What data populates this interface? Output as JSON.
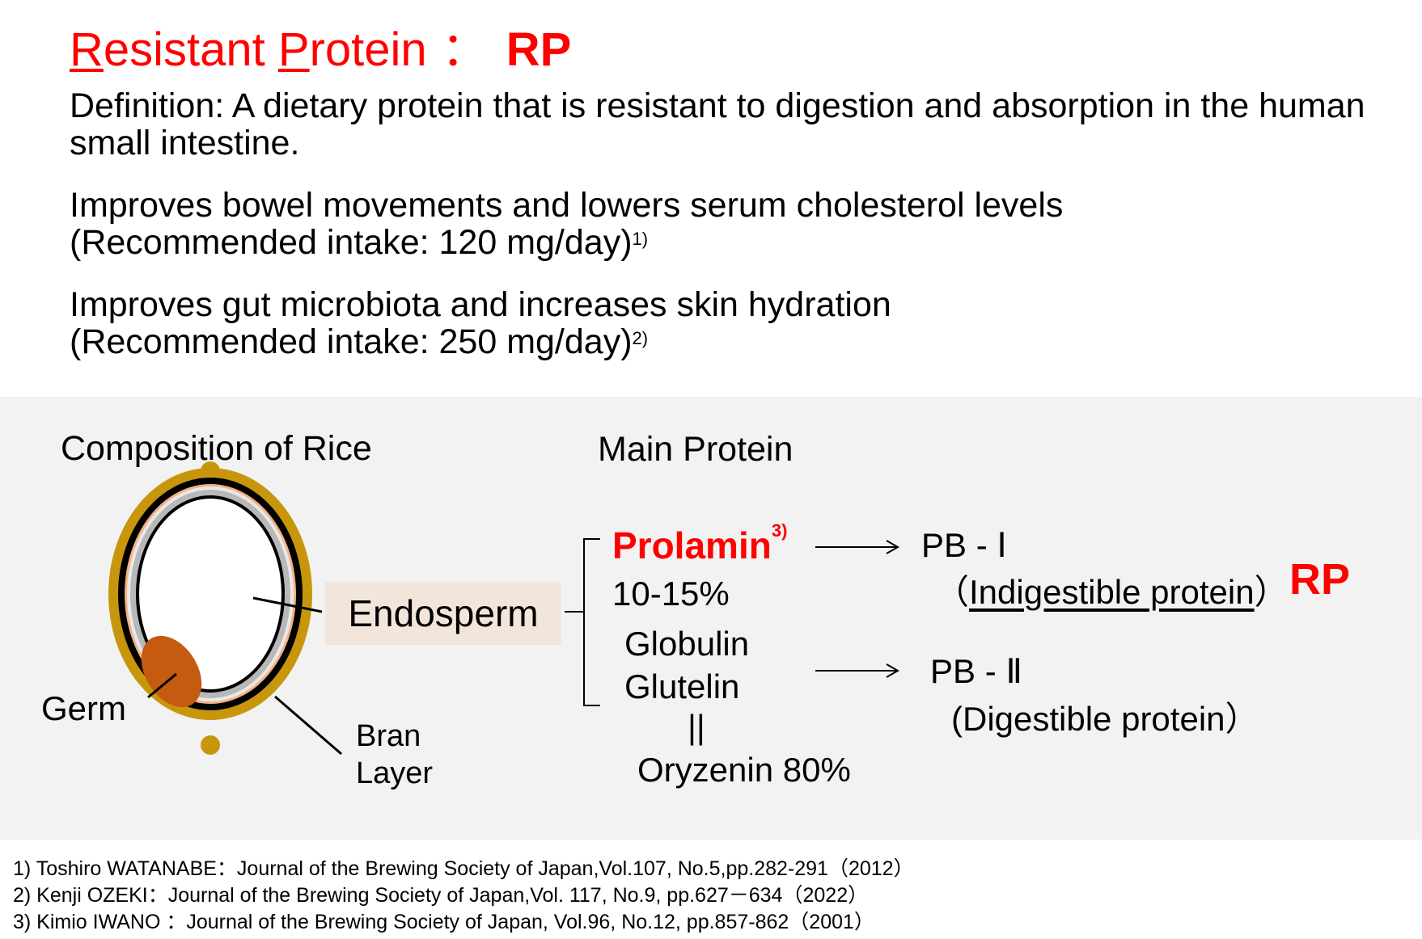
{
  "title": {
    "r_initial": "R",
    "word1_rest": "esistant ",
    "p_initial": "P",
    "word2_rest": "rotein",
    "separator": "：",
    "abbr": "RP"
  },
  "definition": {
    "line1": "Definition: A dietary protein that is resistant to digestion and absorption in the human",
    "line2": "small intestine."
  },
  "effect1": {
    "line1": "Improves bowel movements and lowers serum cholesterol levels",
    "line2": "(Recommended intake: 120 mg/day)",
    "ref": "1)"
  },
  "effect2": {
    "line1": "Improves gut microbiota and increases skin hydration",
    "line2": "(Recommended intake: 250 mg/day)",
    "ref": "2)"
  },
  "diagram": {
    "heading_left": "Composition of Rice",
    "heading_right": "Main Protein",
    "germ": "Germ",
    "endosperm": "Endosperm",
    "bran_line1": "Bran",
    "bran_line2": "Layer",
    "prolamin": "Prolamin",
    "prolamin_ref": "3)",
    "prolamin_pct": "10-15%",
    "globulin": "Globulin",
    "glutelin": "Glutelin",
    "equals": "||",
    "oryzenin": "Oryzenin 80%",
    "pb1": "PB -  Ⅰ",
    "pb1_paren_open": "（",
    "pb1_desc": "Indigestible protein",
    "pb1_paren_close": "）",
    "rp": "RP",
    "pb2": "PB - Ⅱ",
    "pb2_desc": "(Digestible protein）",
    "colors": {
      "accent": "#ff0000",
      "panel": "#f2f2f2",
      "endosperm_box": "#f2e6da",
      "husk": "#c8960c",
      "germ": "#c55a11",
      "bran_inner": "#f4b183"
    }
  },
  "references": [
    "1) Toshiro WATANABE：Journal of the Brewing Society of Japan,Vol.107, No.5,pp.282-291（2012）",
    "2) Kenji OZEKI：Journal of the Brewing Society of Japan,Vol. 117, No.9, pp.627－634（2022）",
    "3) Kimio IWANO ：Journal of the Brewing Society of Japan, Vol.96, No.12, pp.857-862（2001）"
  ]
}
